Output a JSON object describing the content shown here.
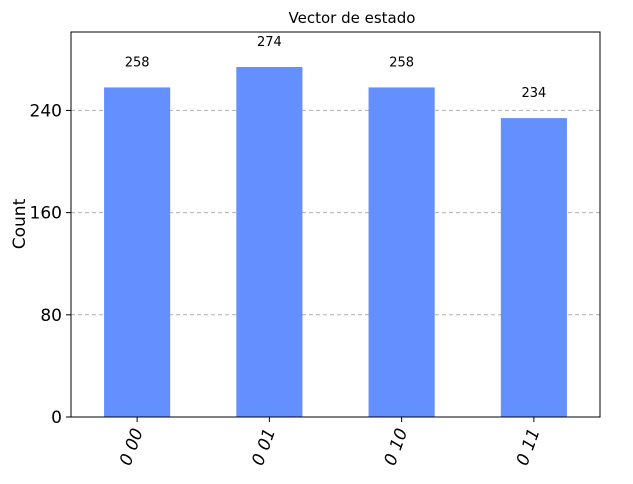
{
  "chart_data": {
    "type": "bar",
    "title": "Vector de estado",
    "xlabel": "",
    "ylabel": "Count",
    "categories": [
      "0 00",
      "0 01",
      "0 10",
      "0 11"
    ],
    "values": [
      258,
      274,
      258,
      234
    ],
    "data_labels": [
      "258",
      "274",
      "258",
      "234"
    ],
    "yticks": [
      0,
      80,
      160,
      240
    ],
    "ytick_labels": [
      "0",
      "80",
      "160",
      "240"
    ],
    "ylim": [
      0,
      301.4
    ],
    "grid": true,
    "grid_axis": "y",
    "bar_color": "#648fff",
    "xtick_rotation": "70 degrees"
  }
}
